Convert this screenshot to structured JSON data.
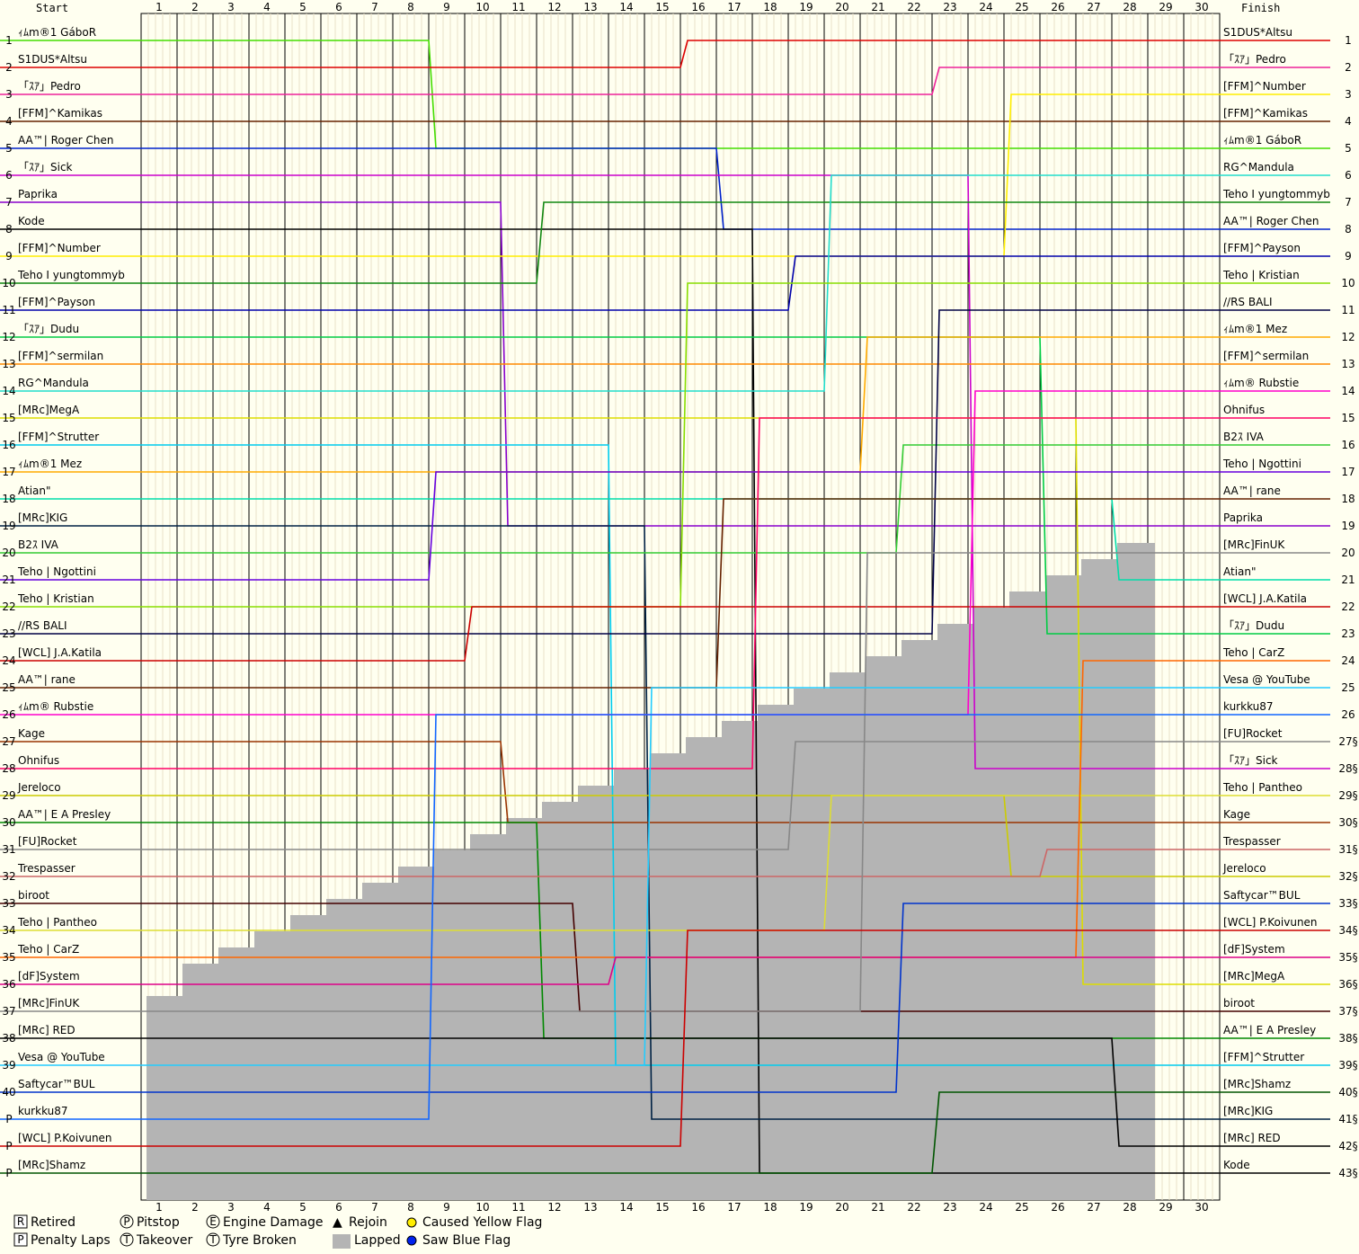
{
  "header": {
    "start": "Start",
    "finish": "Finish"
  },
  "chart_data": {
    "type": "line",
    "x": [
      1,
      2,
      3,
      4,
      5,
      6,
      7,
      8,
      9,
      10,
      11,
      12,
      13,
      14,
      15,
      16,
      17,
      18,
      19,
      20,
      21,
      22,
      23,
      24,
      25,
      26,
      27,
      28,
      29,
      30
    ],
    "start_positions": [
      "1",
      "2",
      "3",
      "4",
      "5",
      "6",
      "7",
      "8",
      "9",
      "10",
      "11",
      "12",
      "13",
      "14",
      "15",
      "16",
      "17",
      "18",
      "19",
      "20",
      "21",
      "22",
      "23",
      "24",
      "25",
      "26",
      "27",
      "28",
      "29",
      "30",
      "31",
      "32",
      "33",
      "34",
      "35",
      "36",
      "37",
      "38",
      "39",
      "40",
      "P",
      "P",
      "P"
    ],
    "finish_positions": [
      "1",
      "2",
      "3",
      "4",
      "5",
      "6",
      "7",
      "8",
      "9",
      "10",
      "11",
      "12",
      "13",
      "14",
      "15",
      "16",
      "17",
      "18",
      "19",
      "20",
      "21",
      "22",
      "23",
      "24",
      "25",
      "26",
      "27§",
      "28§",
      "29§",
      "30§",
      "31§",
      "32§",
      "33§",
      "34§",
      "35§",
      "36§",
      "37§",
      "38§",
      "39§",
      "40§",
      "41§",
      "42§",
      "43§"
    ],
    "start_names": [
      "ｨﾑm®1 GáboR",
      "S1DUS*Altsu",
      "「ｽｱ」Pedro",
      "[FFM]^Kamikas",
      "AA™| Roger Chen",
      "「ｽｱ」Sick",
      "Paprika",
      "Kode",
      "[FFM]^Number",
      "Teho I yungtommyb",
      "[FFM]^Payson",
      "「ｽｱ」Dudu",
      "[FFM]^sermilan",
      "RG^Mandula",
      "[MRc]MegA",
      "[FFM]^Strutter",
      "ｨﾑm®1 Mez",
      "Atian\"",
      "[MRc]KIG",
      "B2ｽ IVA",
      "Teho | Ngottini",
      "Teho | Kristian",
      "//RS BALI",
      "[WCL] J.A.Katila",
      "AA™| rane",
      "ｨﾑm® Rubstie",
      "Kage",
      "Ohnifus",
      "Jereloco",
      "AA™| E A Presley",
      "[FU]Rocket",
      "Trespasser",
      "biroot",
      "Teho | Pantheo",
      "Teho | CarZ",
      "[dF]System",
      "[MRc]FinUK",
      "[MRc] RED",
      "Vesa @ YouTube",
      "Saftycar™BUL",
      "kurkku87",
      "[WCL] P.Koivunen",
      "[MRc]Shamz"
    ],
    "finish_names": [
      "S1DUS*Altsu",
      "「ｽｱ」Pedro",
      "[FFM]^Number",
      "[FFM]^Kamikas",
      "ｨﾑm®1 GáboR",
      "RG^Mandula",
      "Teho I yungtommyb",
      "AA™| Roger Chen",
      "[FFM]^Payson",
      "Teho | Kristian",
      "//RS BALI",
      "ｨﾑm®1 Mez",
      "[FFM]^sermilan",
      "ｨﾑm® Rubstie",
      "Ohnifus",
      "B2ｽ IVA",
      "Teho | Ngottini",
      "AA™| rane",
      "Paprika",
      "[MRc]FinUK",
      "Atian\"",
      "[WCL] J.A.Katila",
      "「ｽｱ」Dudu",
      "Teho | CarZ",
      "Vesa @ YouTube",
      "kurkku87",
      "[FU]Rocket",
      "「ｽｱ」Sick",
      "Teho | Pantheo",
      "Kage",
      "Trespasser",
      "Jereloco",
      "Saftycar™BUL",
      "[WCL] P.Koivunen",
      "[dF]System",
      "[MRc]MegA",
      "biroot",
      "AA™| E A Presley",
      "[FFM]^Strutter",
      "[MRc]Shamz",
      "[MRc]KIG",
      "[MRc] RED",
      "Kode"
    ],
    "colors": [
      "#44dd00",
      "#dd0000",
      "#ee2299",
      "#662200",
      "#0022cc",
      "#cc00cc",
      "#8800cc",
      "#000000",
      "#ffee00",
      "#118811",
      "#0000aa",
      "#00cc44",
      "#ff8800",
      "#22ddcc",
      "#dddd00",
      "#00ccee",
      "#ffaa00",
      "#00ddaa",
      "#002244",
      "#33cc33",
      "#6600dd",
      "#88dd00",
      "#000044",
      "#cc0000",
      "#662200",
      "#ff00cc",
      "#993300",
      "#ff0066",
      "#cccc00",
      "#008800",
      "#888888",
      "#cc6666",
      "#440000",
      "#dddd33",
      "#ff6600",
      "#dd0088",
      "#888888",
      "#000000",
      "#22ccff",
      "#0033cc",
      "#1166ff",
      "#cc0000",
      "#005500"
    ],
    "lapped_from_lap": [
      1,
      1,
      1,
      1,
      1,
      2,
      2,
      3,
      4,
      5,
      6,
      7,
      8,
      9,
      10,
      11,
      12,
      13,
      14,
      15,
      16,
      17,
      18,
      19,
      20,
      21,
      22,
      23,
      24,
      25,
      26,
      27,
      28,
      29
    ],
    "legend": [
      {
        "symbol": "R",
        "label": "Retired"
      },
      {
        "symbol": "P",
        "label": "Pitstop"
      },
      {
        "symbol": "E",
        "label": "Engine Damage"
      },
      {
        "symbol": "▲",
        "label": "Rejoin"
      },
      {
        "symbol": "●",
        "label": "Caused Yellow Flag"
      },
      {
        "symbol": "P",
        "label": "Penalty Laps"
      },
      {
        "symbol": "T",
        "label": "Takeover"
      },
      {
        "symbol": "T",
        "label": "Tyre Broken"
      },
      {
        "symbol": "■",
        "label": "Lapped"
      },
      {
        "symbol": "●",
        "label": "Saw Blue Flag"
      }
    ]
  }
}
